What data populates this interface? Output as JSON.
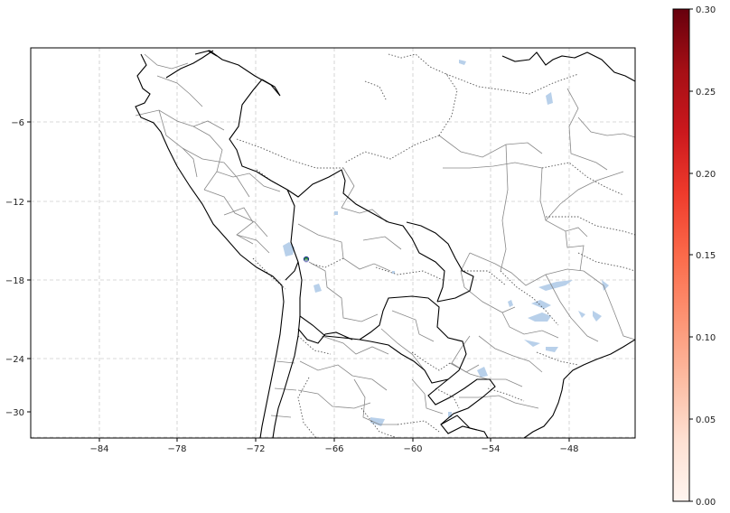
{
  "map": {
    "lon_ticks": [
      "−84",
      "−78",
      "−72",
      "−66",
      "−60",
      "−54",
      "−48"
    ],
    "lat_ticks": [
      "−6",
      "−12",
      "−18",
      "−24",
      "−30"
    ],
    "marker": {
      "lon": -67.9,
      "lat": -16.8,
      "label": ""
    }
  },
  "colorbar": {
    "colormap": "Reds",
    "ticks": [
      "0.00",
      "0.05",
      "0.10",
      "0.15",
      "0.20",
      "0.25",
      "0.30"
    ],
    "min": 0.0,
    "max": 0.3
  },
  "colors": {
    "coastline": "#000000",
    "country_border": "#000000",
    "state_border": "#888888",
    "lakes": "#b8d0ea",
    "gridline": "#cccccc",
    "marker_fill": "#2f8f3a",
    "marker_edge": "#1a2f8f"
  }
}
